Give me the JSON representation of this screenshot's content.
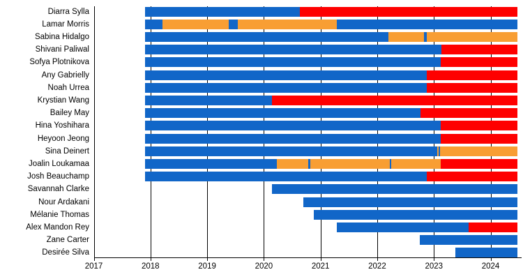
{
  "chart_data": {
    "type": "bar",
    "subtype": "membership-timeline-gantt",
    "title": "",
    "xlabel": "",
    "ylabel": "",
    "x_axis": {
      "min": 2017,
      "max": 2024.57,
      "ticks": [
        2017,
        2018,
        2019,
        2020,
        2021,
        2022,
        2023,
        2024
      ],
      "tick_labels": [
        "2017",
        "2018",
        "2019",
        "2020",
        "2021",
        "2022",
        "2023",
        "2024"
      ],
      "grid": true
    },
    "colors": {
      "blue": "#1166c8",
      "orange": "#f89e33",
      "red": "#fe0000"
    },
    "members": [
      {
        "name": "Diarra Sylla",
        "segments": [
          {
            "from": 2017.9,
            "to": 2020.64,
            "color": "blue"
          },
          {
            "from": 2020.64,
            "to": 2024.47,
            "color": "red"
          }
        ]
      },
      {
        "name": "Lamar Morris",
        "segments": [
          {
            "from": 2017.9,
            "to": 2018.21,
            "color": "blue"
          },
          {
            "from": 2018.21,
            "to": 2019.38,
            "color": "orange"
          },
          {
            "from": 2019.38,
            "to": 2019.54,
            "color": "blue"
          },
          {
            "from": 2019.54,
            "to": 2021.29,
            "color": "orange"
          },
          {
            "from": 2021.29,
            "to": 2024.47,
            "color": "blue"
          }
        ]
      },
      {
        "name": "Sabina Hidalgo",
        "segments": [
          {
            "from": 2017.9,
            "to": 2022.2,
            "color": "blue"
          },
          {
            "from": 2022.2,
            "to": 2022.83,
            "color": "orange"
          },
          {
            "from": 2022.83,
            "to": 2022.88,
            "color": "blue"
          },
          {
            "from": 2022.88,
            "to": 2024.47,
            "color": "orange"
          }
        ]
      },
      {
        "name": "Shivani Paliwal",
        "segments": [
          {
            "from": 2017.9,
            "to": 2023.13,
            "color": "blue"
          },
          {
            "from": 2023.13,
            "to": 2024.47,
            "color": "red"
          }
        ]
      },
      {
        "name": "Sofya Plotnikova",
        "segments": [
          {
            "from": 2017.9,
            "to": 2023.12,
            "color": "blue"
          },
          {
            "from": 2023.12,
            "to": 2024.47,
            "color": "red"
          }
        ]
      },
      {
        "name": "Any Gabrielly",
        "segments": [
          {
            "from": 2017.9,
            "to": 2022.88,
            "color": "blue"
          },
          {
            "from": 2022.88,
            "to": 2024.47,
            "color": "red"
          }
        ]
      },
      {
        "name": "Noah Urrea",
        "segments": [
          {
            "from": 2017.9,
            "to": 2022.88,
            "color": "blue"
          },
          {
            "from": 2022.88,
            "to": 2024.47,
            "color": "red"
          }
        ]
      },
      {
        "name": "Krystian Wang",
        "segments": [
          {
            "from": 2017.9,
            "to": 2020.14,
            "color": "blue"
          },
          {
            "from": 2020.14,
            "to": 2024.47,
            "color": "red"
          }
        ]
      },
      {
        "name": "Bailey May",
        "segments": [
          {
            "from": 2017.9,
            "to": 2022.76,
            "color": "blue"
          },
          {
            "from": 2022.76,
            "to": 2024.47,
            "color": "red"
          }
        ]
      },
      {
        "name": "Hina Yoshihara",
        "segments": [
          {
            "from": 2017.9,
            "to": 2023.12,
            "color": "blue"
          },
          {
            "from": 2023.12,
            "to": 2024.47,
            "color": "red"
          }
        ]
      },
      {
        "name": "Heyoon Jeong",
        "segments": [
          {
            "from": 2017.9,
            "to": 2023.12,
            "color": "blue"
          },
          {
            "from": 2023.12,
            "to": 2024.47,
            "color": "red"
          }
        ]
      },
      {
        "name": "Sina Deinert",
        "segments": [
          {
            "from": 2017.9,
            "to": 2023.06,
            "color": "blue"
          },
          {
            "from": 2023.06,
            "to": 2023.08,
            "color": "orange"
          },
          {
            "from": 2023.08,
            "to": 2023.11,
            "color": "blue"
          },
          {
            "from": 2023.11,
            "to": 2024.47,
            "color": "orange"
          }
        ]
      },
      {
        "name": "Joalin Loukamaa",
        "segments": [
          {
            "from": 2017.9,
            "to": 2020.23,
            "color": "blue"
          },
          {
            "from": 2020.23,
            "to": 2020.78,
            "color": "orange"
          },
          {
            "from": 2020.78,
            "to": 2020.82,
            "color": "blue"
          },
          {
            "from": 2020.82,
            "to": 2022.22,
            "color": "orange"
          },
          {
            "from": 2022.22,
            "to": 2022.25,
            "color": "blue"
          },
          {
            "from": 2022.25,
            "to": 2023.12,
            "color": "orange"
          },
          {
            "from": 2023.12,
            "to": 2024.47,
            "color": "red"
          }
        ]
      },
      {
        "name": "Josh Beauchamp",
        "segments": [
          {
            "from": 2017.9,
            "to": 2022.88,
            "color": "blue"
          },
          {
            "from": 2022.88,
            "to": 2024.47,
            "color": "red"
          }
        ]
      },
      {
        "name": "Savannah Clarke",
        "segments": [
          {
            "from": 2020.14,
            "to": 2024.47,
            "color": "blue"
          }
        ]
      },
      {
        "name": "Nour Ardakani",
        "segments": [
          {
            "from": 2020.7,
            "to": 2024.47,
            "color": "blue"
          }
        ]
      },
      {
        "name": "Mélanie Thomas",
        "segments": [
          {
            "from": 2020.88,
            "to": 2024.47,
            "color": "blue"
          }
        ]
      },
      {
        "name": "Alex Mandon Rey",
        "segments": [
          {
            "from": 2021.29,
            "to": 2023.61,
            "color": "blue"
          },
          {
            "from": 2023.61,
            "to": 2024.47,
            "color": "red"
          }
        ]
      },
      {
        "name": "Zane Carter",
        "segments": [
          {
            "from": 2022.75,
            "to": 2024.47,
            "color": "blue"
          }
        ]
      },
      {
        "name": "Desirée Silva",
        "segments": [
          {
            "from": 2023.38,
            "to": 2024.47,
            "color": "blue"
          }
        ]
      }
    ]
  }
}
